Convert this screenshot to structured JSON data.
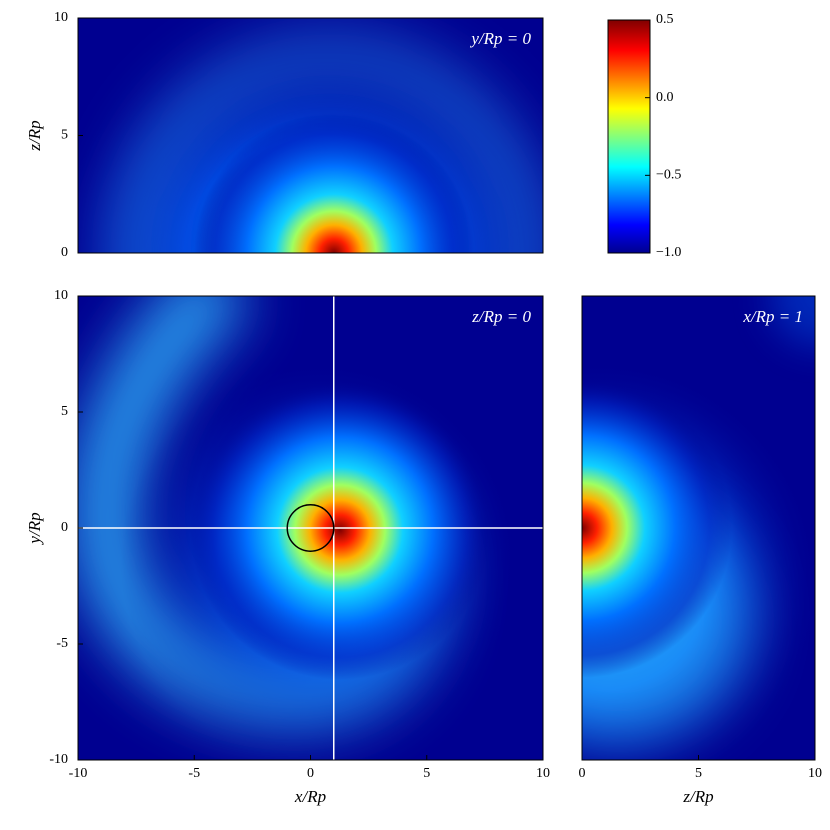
{
  "chart_data": [
    {
      "type": "heatmap",
      "annotation": "y/Rp = 0",
      "ylabel": "z/Rp",
      "xlim": [
        -10,
        10
      ],
      "ylim": [
        0,
        10
      ],
      "yticks": [
        0,
        5,
        10
      ]
    },
    {
      "type": "heatmap",
      "annotation": "z/Rp = 0",
      "xlabel": "x/Rp",
      "ylabel": "y/Rp",
      "xlim": [
        -10,
        10
      ],
      "ylim": [
        -10,
        10
      ],
      "xticks": [
        -10,
        -5,
        0,
        5,
        10
      ],
      "yticks": [
        -10,
        -5,
        0,
        5,
        10
      ],
      "cut_lines": {
        "x": 1,
        "y": 0
      },
      "planet": {
        "x": 0,
        "y": 0,
        "r": 1
      }
    },
    {
      "type": "heatmap",
      "annotation": "x/Rp = 1",
      "xlabel": "z/Rp",
      "xlim": [
        0,
        10
      ],
      "ylim": [
        -10,
        10
      ],
      "xticks": [
        0,
        5,
        10
      ]
    },
    {
      "type": "colorbar",
      "clim": [
        -1.0,
        0.5
      ],
      "ticks": [
        0.5,
        {
          "value": 0.0,
          "label": "0.0"
        },
        {
          "value": -0.5,
          "label": "−0.5"
        },
        {
          "value": -1.0,
          "label": "−1.0"
        }
      ]
    }
  ]
}
